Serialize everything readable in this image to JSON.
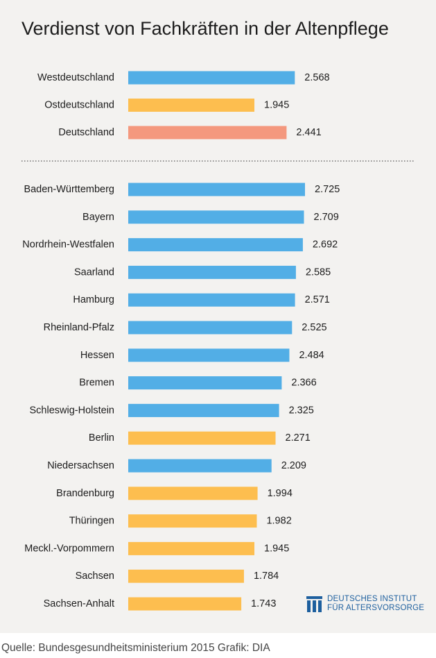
{
  "title": "Verdienst von Fachkräften in der Altenpflege",
  "colors": {
    "west": "#52aee6",
    "east": "#fdbe4f",
    "national": "#f4987e",
    "background": "#f3f2f0",
    "logo": "#1d5f9e"
  },
  "chart_data": {
    "type": "bar",
    "orientation": "horizontal",
    "title": "Verdienst von Fachkräften in der Altenpflege",
    "xlabel": "",
    "ylabel": "",
    "grid": false,
    "xlim": [
      0,
      2725
    ],
    "groups": [
      {
        "categories": [
          "Westdeutschland",
          "Ostdeutschland",
          "Deutschland"
        ],
        "values": [
          2568,
          1945,
          2441
        ],
        "value_labels": [
          "2.568",
          "1.945",
          "2.441"
        ],
        "color_keys": [
          "west",
          "east",
          "national"
        ]
      },
      {
        "categories": [
          "Baden-Württemberg",
          "Bayern",
          "Nordrhein-Westfalen",
          "Saarland",
          "Hamburg",
          "Rheinland-Pfalz",
          "Hessen",
          "Bremen",
          "Schleswig-Holstein",
          "Berlin",
          "Niedersachsen",
          "Brandenburg",
          "Thüringen",
          "Meckl.-Vorpommern",
          "Sachsen",
          "Sachsen-Anhalt"
        ],
        "values": [
          2725,
          2709,
          2692,
          2585,
          2571,
          2525,
          2484,
          2366,
          2325,
          2271,
          2209,
          1994,
          1982,
          1945,
          1784,
          1743
        ],
        "value_labels": [
          "2.725",
          "2.709",
          "2.692",
          "2.585",
          "2.571",
          "2.525",
          "2.484",
          "2.366",
          "2.325",
          "2.271",
          "2.209",
          "1.994",
          "1.982",
          "1.945",
          "1.784",
          "1.743"
        ],
        "color_keys": [
          "west",
          "west",
          "west",
          "west",
          "west",
          "west",
          "west",
          "west",
          "west",
          "east",
          "west",
          "east",
          "east",
          "east",
          "east",
          "east"
        ]
      }
    ]
  },
  "logo": {
    "icon": "institute-columns-icon",
    "line1": "DEUTSCHES INSTITUT",
    "line2": "FÜR ALTERSVORSORGE"
  },
  "source": "Quelle: Bundesgesundheitsministerium 2015 Grafik: DIA"
}
